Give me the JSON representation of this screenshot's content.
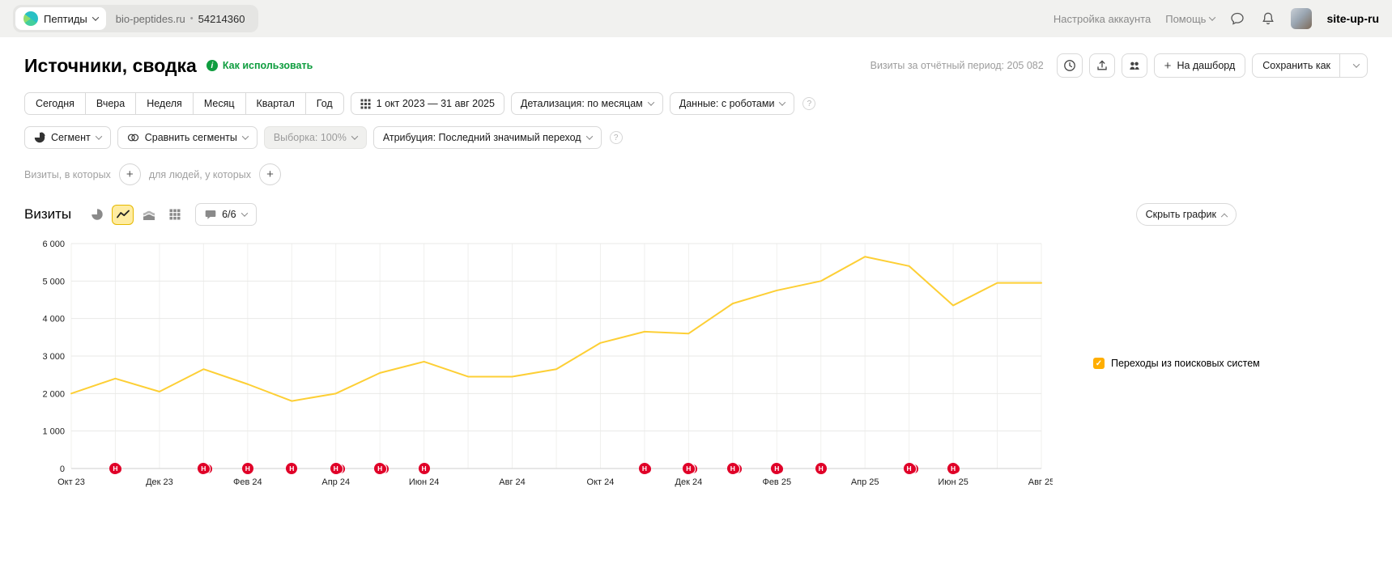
{
  "icons": {
    "plus": "+",
    "question": "?",
    "info_i": "i",
    "check": "✓",
    "dot": "•"
  },
  "topbar": {
    "app_name": "Пептиды",
    "counter": {
      "site": "bio-peptides.ru",
      "id": "54214360"
    },
    "account_settings": "Настройка аккаунта",
    "help": "Помощь",
    "user": "site-up-ru"
  },
  "header": {
    "title": "Источники, сводка",
    "how_to_use": "Как использовать",
    "visits_period": "Визиты за отчётный период: 205 082",
    "dashboard_button": "На дашборд",
    "save_as_button": "Сохранить как"
  },
  "period_bar": {
    "presets": [
      "Сегодня",
      "Вчера",
      "Неделя",
      "Месяц",
      "Квартал",
      "Год"
    ],
    "date_range": "1 окт 2023 — 31 авг 2025",
    "detail": "Детализация: по месяцам",
    "data_mode": "Данные: с роботами"
  },
  "segment_bar": {
    "segment": "Сегмент",
    "compare": "Сравнить сегменты",
    "sampling": "Выборка: 100%",
    "attribution": "Атрибуция: Последний значимый переход"
  },
  "filter_bar": {
    "visits_label": "Визиты, в которых",
    "people_label": "для людей, у которых"
  },
  "chart_header": {
    "title": "Визиты",
    "goals_badge": "6/6",
    "hide_chart": "Скрыть график"
  },
  "legend": {
    "label": "Переходы из поисковых систем",
    "checkbox_color": "#ffae00"
  },
  "chart_data": {
    "type": "line",
    "title": "Визиты",
    "marker_letter": "Н",
    "x": [
      "Окт 23",
      "Ноя 23",
      "Дек 23",
      "Янв 24",
      "Фев 24",
      "Мар 24",
      "Апр 24",
      "Май 24",
      "Июн 24",
      "Июл 24",
      "Авг 24",
      "Сен 24",
      "Окт 24",
      "Ноя 24",
      "Дек 24",
      "Янв 25",
      "Фев 25",
      "Мар 25",
      "Апр 25",
      "Май 25",
      "Июн 25",
      "Июл 25",
      "Авг 25"
    ],
    "x_tick_labels": [
      "Окт 23",
      "Дек 23",
      "Фев 24",
      "Апр 24",
      "Июн 24",
      "Авг 24",
      "Окт 24",
      "Дек 24",
      "Фев 25",
      "Апр 25",
      "Июн 25",
      "Авг 25"
    ],
    "series": [
      {
        "name": "Переходы из поисковых систем",
        "color": "#fdcf35",
        "values": [
          2000,
          2400,
          2050,
          2650,
          2250,
          1800,
          2000,
          2550,
          2850,
          2450,
          2450,
          2650,
          3350,
          3650,
          3600,
          4400,
          4750,
          5000,
          5650,
          5400,
          4350,
          4950,
          4950
        ]
      }
    ],
    "ylim": [
      0,
      6000
    ],
    "y_ticks": [
      0,
      1000,
      2000,
      3000,
      4000,
      5000,
      6000
    ],
    "y_tick_labels": [
      "0",
      "1 000",
      "2 000",
      "3 000",
      "4 000",
      "5 000",
      "6 000"
    ],
    "grid": true,
    "legend_position": "right",
    "markers": [
      {
        "month": "Ноя 23",
        "index": 1,
        "extra_arcs": 1
      },
      {
        "month": "Янв 24",
        "index": 3,
        "extra_arcs": 2
      },
      {
        "month": "Фев 24",
        "index": 4,
        "extra_arcs": 0
      },
      {
        "month": "Мар 24",
        "index": 5,
        "extra_arcs": 0
      },
      {
        "month": "Апр 24",
        "index": 6,
        "extra_arcs": 2
      },
      {
        "month": "Май 24",
        "index": 7,
        "extra_arcs": 2
      },
      {
        "month": "Июн 24",
        "index": 8,
        "extra_arcs": 0
      },
      {
        "month": "Ноя 24",
        "index": 13,
        "extra_arcs": 1
      },
      {
        "month": "Дек 24",
        "index": 14,
        "extra_arcs": 2
      },
      {
        "month": "Янв 25",
        "index": 15,
        "extra_arcs": 2
      },
      {
        "month": "Фев 25",
        "index": 16,
        "extra_arcs": 1
      },
      {
        "month": "Мар 25",
        "index": 17,
        "extra_arcs": 0
      },
      {
        "month": "Май 25",
        "index": 19,
        "extra_arcs": 2
      },
      {
        "month": "Июн 25",
        "index": 20,
        "extra_arcs": 1
      }
    ]
  }
}
